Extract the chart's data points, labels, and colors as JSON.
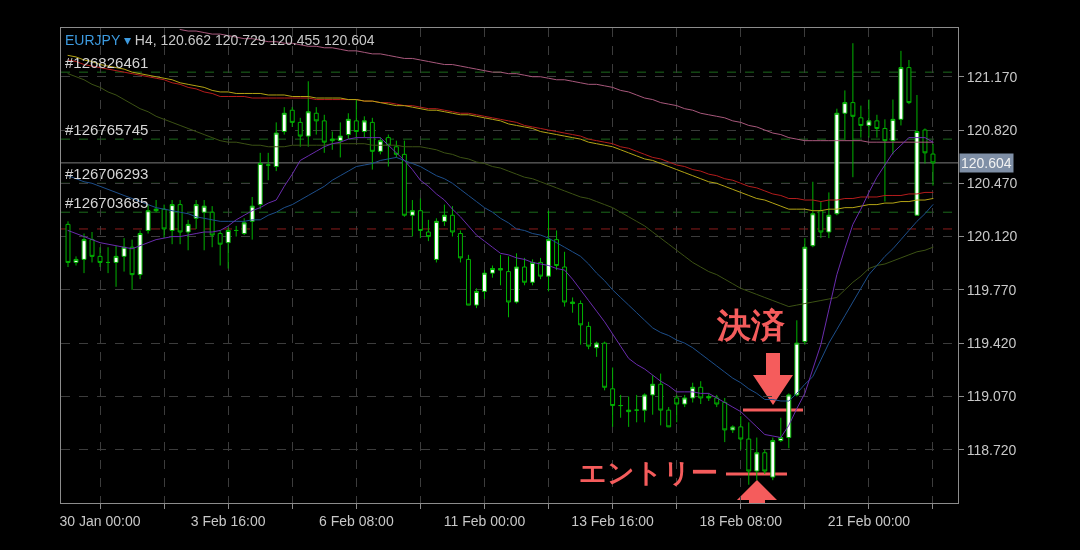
{
  "chart_data": {
    "type": "candlestick",
    "title": "EURJPY ▾",
    "subtitle": "H4, 120.662 120.729 120.455 120.604",
    "categories": [
      null,
      null,
      null,
      null,
      "30 Jan 00:00",
      null,
      null,
      null,
      null,
      null,
      null,
      null,
      null,
      null,
      null,
      null,
      null,
      null,
      null,
      null,
      "3 Feb 16:00",
      null,
      null,
      null,
      null,
      null,
      null,
      null,
      null,
      null,
      null,
      null,
      null,
      null,
      null,
      null,
      "6 Feb 08:00",
      null,
      null,
      null,
      null,
      null,
      null,
      null,
      null,
      null,
      null,
      null,
      null,
      null,
      null,
      null,
      "11 Feb 00:00",
      null,
      null,
      null,
      null,
      null,
      null,
      null,
      null,
      null,
      null,
      null,
      null,
      null,
      null,
      null,
      "13 Feb 16:00",
      null,
      null,
      null,
      null,
      null,
      null,
      null,
      null,
      null,
      null,
      null,
      null,
      null,
      null,
      null,
      "18 Feb 08:00",
      null,
      null,
      null,
      null,
      null,
      null,
      null,
      null,
      null,
      null,
      null,
      null,
      null,
      null,
      null,
      "21 Feb 00:00",
      null,
      null,
      null,
      null,
      null,
      null,
      null,
      null
    ],
    "ohlc": [
      [
        120.2,
        120.22,
        119.92,
        119.95
      ],
      [
        119.95,
        119.99,
        119.93,
        119.97
      ],
      [
        119.97,
        120.14,
        119.88,
        120.1
      ],
      [
        120.1,
        120.15,
        119.95,
        119.99
      ],
      [
        119.99,
        120.05,
        119.92,
        119.95
      ],
      [
        119.95,
        120.05,
        119.88,
        119.95
      ],
      [
        119.95,
        120.06,
        119.79,
        119.99
      ],
      [
        119.99,
        120.11,
        119.89,
        120.05
      ],
      [
        120.05,
        120.1,
        119.77,
        119.87
      ],
      [
        119.87,
        120.16,
        119.84,
        120.14
      ],
      [
        120.16,
        120.33,
        120.14,
        120.29
      ],
      [
        120.29,
        120.36,
        120.28,
        120.3
      ],
      [
        120.3,
        120.33,
        120.11,
        120.17
      ],
      [
        120.16,
        120.36,
        120.07,
        120.33
      ],
      [
        120.33,
        120.36,
        120.07,
        120.15
      ],
      [
        120.15,
        120.23,
        120.03,
        120.2
      ],
      [
        120.24,
        120.36,
        120.17,
        120.33
      ],
      [
        120.28,
        120.36,
        120.03,
        120.32
      ],
      [
        120.28,
        120.32,
        120.05,
        120.13
      ],
      [
        120.14,
        120.16,
        119.93,
        120.07
      ],
      [
        120.08,
        120.18,
        119.91,
        120.16
      ],
      [
        120.16,
        120.19,
        120.12,
        120.16
      ],
      [
        120.14,
        120.24,
        120.13,
        120.21
      ],
      [
        120.22,
        120.38,
        120.1,
        120.32
      ],
      [
        120.33,
        120.67,
        120.3,
        120.6
      ],
      [
        120.59,
        120.67,
        120.49,
        120.59
      ],
      [
        120.58,
        120.87,
        120.55,
        120.8
      ],
      [
        120.81,
        120.97,
        120.79,
        120.93
      ],
      [
        120.95,
        120.97,
        120.84,
        120.87
      ],
      [
        120.87,
        120.9,
        120.71,
        120.78
      ],
      [
        120.78,
        121.14,
        120.71,
        120.94
      ],
      [
        120.93,
        120.97,
        120.79,
        120.88
      ],
      [
        120.88,
        120.92,
        120.67,
        120.74
      ],
      [
        120.75,
        120.81,
        120.69,
        120.76
      ],
      [
        120.75,
        120.87,
        120.64,
        120.78
      ],
      [
        120.79,
        120.93,
        120.76,
        120.89
      ],
      [
        120.88,
        121.02,
        120.77,
        120.81
      ],
      [
        120.81,
        120.91,
        120.77,
        120.88
      ],
      [
        120.87,
        120.9,
        120.56,
        120.68
      ],
      [
        120.68,
        120.77,
        120.66,
        120.75
      ],
      [
        120.77,
        120.79,
        120.58,
        120.72
      ],
      [
        120.71,
        120.75,
        120.64,
        120.66
      ],
      [
        120.66,
        120.75,
        120.25,
        120.26
      ],
      [
        120.26,
        120.36,
        120.12,
        120.29
      ],
      [
        120.29,
        120.37,
        120.11,
        120.16
      ],
      [
        120.15,
        120.23,
        120.09,
        120.12
      ],
      [
        119.97,
        120.24,
        119.95,
        120.22
      ],
      [
        120.22,
        120.33,
        120.19,
        120.26
      ],
      [
        120.26,
        120.32,
        120.12,
        120.15
      ],
      [
        120.14,
        120.16,
        119.95,
        119.98
      ],
      [
        119.97,
        120.0,
        119.67,
        119.67
      ],
      [
        119.67,
        119.78,
        119.65,
        119.76
      ],
      [
        119.76,
        119.9,
        119.71,
        119.88
      ],
      [
        119.88,
        119.93,
        119.85,
        119.91
      ],
      [
        119.9,
        120.0,
        119.8,
        119.91
      ],
      [
        119.89,
        119.99,
        119.59,
        119.69
      ],
      [
        119.69,
        120.01,
        119.68,
        119.92
      ],
      [
        119.92,
        119.98,
        119.8,
        119.82
      ],
      [
        119.82,
        119.97,
        119.8,
        119.95
      ],
      [
        119.95,
        119.98,
        119.84,
        119.86
      ],
      [
        119.86,
        120.29,
        119.76,
        120.1
      ],
      [
        120.1,
        120.16,
        119.9,
        119.93
      ],
      [
        119.92,
        120.02,
        119.66,
        119.69
      ],
      [
        119.69,
        119.72,
        119.62,
        119.68
      ],
      [
        119.68,
        119.7,
        119.41,
        119.54
      ],
      [
        119.53,
        119.56,
        119.38,
        119.4
      ],
      [
        119.39,
        119.43,
        119.33,
        119.42
      ],
      [
        119.42,
        119.43,
        119.11,
        119.13
      ],
      [
        119.12,
        119.26,
        118.87,
        119.01
      ],
      [
        119.01,
        119.08,
        118.93,
        119.01
      ],
      [
        118.97,
        119.07,
        118.87,
        118.98
      ],
      [
        118.98,
        119.08,
        118.9,
        118.98
      ],
      [
        118.98,
        119.09,
        118.9,
        119.08
      ],
      [
        119.08,
        119.21,
        118.95,
        119.15
      ],
      [
        119.15,
        119.22,
        118.88,
        118.98
      ],
      [
        118.98,
        119.0,
        118.87,
        118.87
      ],
      [
        119.06,
        119.08,
        118.9,
        119.02
      ],
      [
        119.02,
        119.08,
        119.0,
        119.06
      ],
      [
        119.06,
        119.16,
        119.03,
        119.13
      ],
      [
        119.13,
        119.17,
        119.02,
        119.06
      ],
      [
        119.06,
        119.09,
        119.04,
        119.07
      ],
      [
        119.06,
        119.08,
        119.0,
        119.02
      ],
      [
        119.03,
        119.06,
        118.77,
        118.85
      ],
      [
        118.85,
        118.88,
        118.83,
        118.87
      ],
      [
        118.87,
        118.94,
        118.72,
        118.79
      ],
      [
        118.79,
        118.9,
        118.49,
        118.58
      ],
      [
        118.58,
        118.8,
        118.52,
        118.7
      ],
      [
        118.7,
        118.72,
        118.56,
        118.58
      ],
      [
        118.54,
        118.8,
        118.52,
        118.78
      ],
      [
        118.78,
        118.93,
        118.77,
        118.8
      ],
      [
        118.8,
        119.09,
        118.73,
        119.08
      ],
      [
        119.08,
        119.57,
        119.07,
        119.42
      ],
      [
        119.43,
        120.11,
        119.41,
        120.05
      ],
      [
        120.06,
        120.48,
        120.05,
        120.27
      ],
      [
        120.29,
        120.35,
        120.11,
        120.15
      ],
      [
        120.15,
        120.41,
        120.11,
        120.26
      ],
      [
        120.27,
        120.96,
        120.26,
        120.93
      ],
      [
        120.93,
        121.08,
        120.75,
        121.0
      ],
      [
        121.0,
        121.39,
        120.51,
        120.91
      ],
      [
        120.9,
        120.98,
        120.77,
        120.85
      ],
      [
        120.85,
        121.02,
        120.77,
        120.88
      ],
      [
        120.88,
        120.92,
        120.77,
        120.83
      ],
      [
        120.83,
        120.89,
        120.35,
        120.75
      ],
      [
        120.75,
        121.02,
        120.66,
        120.89
      ],
      [
        120.89,
        121.34,
        120.85,
        121.23
      ],
      [
        121.23,
        121.28,
        120.99,
        121.0
      ],
      [
        120.26,
        121.05,
        120.26,
        120.81
      ],
      [
        120.82,
        120.83,
        120.6,
        120.67
      ],
      [
        120.662,
        120.729,
        120.455,
        120.604
      ]
    ],
    "color": "#00b300",
    "colors": [
      "#000000",
      "#ffffff",
      "#ffffff",
      "#000000",
      "#000000",
      "#00b300",
      "#ffffff",
      "#ffffff",
      "#000000",
      "#ffffff",
      "#ffffff",
      "#00b300",
      "#000000",
      "#ffffff",
      "#000000",
      "#ffffff",
      "#ffffff",
      "#ffffff",
      "#000000",
      "#000000",
      "#ffffff",
      "#00b300",
      "#ffffff",
      "#ffffff",
      "#ffffff",
      "#00b300",
      "#ffffff",
      "#ffffff",
      "#000000",
      "#000000",
      "#ffffff",
      "#000000",
      "#000000",
      "#00b300",
      "#ffffff",
      "#ffffff",
      "#000000",
      "#ffffff",
      "#000000",
      "#ffffff",
      "#000000",
      "#000000",
      "#000000",
      "#ffffff",
      "#000000",
      "#000000",
      "#ffffff",
      "#ffffff",
      "#000000",
      "#000000",
      "#000000",
      "#ffffff",
      "#ffffff",
      "#ffffff",
      "#00b300",
      "#000000",
      "#ffffff",
      "#000000",
      "#ffffff",
      "#000000",
      "#ffffff",
      "#000000",
      "#000000",
      "#00b300",
      "#000000",
      "#000000",
      "#ffffff",
      "#000000",
      "#000000",
      "#00b300",
      "#00b300",
      "#00b300",
      "#ffffff",
      "#ffffff",
      "#000000",
      "#000000",
      "#000000",
      "#ffffff",
      "#ffffff",
      "#000000",
      "#00b300",
      "#000000",
      "#000000",
      "#ffffff",
      "#000000",
      "#000000",
      "#ffffff",
      "#000000",
      "#ffffff",
      "#ffffff",
      "#ffffff",
      "#ffffff",
      "#ffffff",
      "#ffffff",
      "#000000",
      "#ffffff",
      "#ffffff",
      "#ffffff",
      "#000000",
      "#000000",
      "#ffffff",
      "#000000",
      "#000000",
      "#ffffff",
      "#ffffff",
      "#000000",
      "#ffffff",
      "#000000",
      "#000000"
    ],
    "series": [
      {
        "type": "line",
        "color": "#a8587c",
        "values": [
          null,
          null,
          null,
          null,
          null,
          null,
          null,
          null,
          null,
          null,
          null,
          null,
          null,
          null,
          121.48,
          121.47,
          121.47,
          121.46,
          121.45,
          121.45,
          121.44,
          121.43,
          121.42,
          121.42,
          121.41,
          121.4,
          121.4,
          121.39,
          121.39,
          121.38,
          121.37,
          121.37,
          121.36,
          121.36,
          121.35,
          121.34,
          121.34,
          121.33,
          121.32,
          121.32,
          121.31,
          121.3,
          121.29,
          121.29,
          121.28,
          121.27,
          121.26,
          121.25,
          121.25,
          121.24,
          121.23,
          121.22,
          121.21,
          121.2,
          121.2,
          121.19,
          121.19,
          121.18,
          121.17,
          121.17,
          121.16,
          121.15,
          121.15,
          121.14,
          121.13,
          121.12,
          121.12,
          121.11,
          121.1,
          121.08,
          121.07,
          121.05,
          121.03,
          121.02,
          121.0,
          120.99,
          120.98,
          120.96,
          120.95,
          120.93,
          120.92,
          120.91,
          120.9,
          120.88,
          120.87,
          120.85,
          120.84,
          120.82,
          120.8,
          120.79,
          120.77,
          120.76,
          120.75,
          120.75,
          120.75,
          120.75,
          120.75,
          120.75,
          120.75,
          120.75,
          120.74,
          120.74,
          120.74,
          120.74,
          120.74,
          120.74,
          120.74,
          120.74,
          120.74
        ]
      },
      {
        "type": "line",
        "color": "#b41c1c",
        "values": [
          121.28,
          121.27,
          121.25,
          121.24,
          121.23,
          121.22,
          121.21,
          121.2,
          121.19,
          121.18,
          121.17,
          121.16,
          121.15,
          121.13,
          121.12,
          121.1,
          121.09,
          121.07,
          121.06,
          121.04,
          121.04,
          121.04,
          121.04,
          121.03,
          121.03,
          121.03,
          121.03,
          121.03,
          121.03,
          121.03,
          121.03,
          121.02,
          121.02,
          121.02,
          121.02,
          121.02,
          121.02,
          121.01,
          121.01,
          121.0,
          121.0,
          120.99,
          120.98,
          120.98,
          120.97,
          120.96,
          120.96,
          120.95,
          120.94,
          120.93,
          120.93,
          120.92,
          120.91,
          120.9,
          120.89,
          120.88,
          120.87,
          120.85,
          120.84,
          120.83,
          120.82,
          120.81,
          120.8,
          120.79,
          120.78,
          120.76,
          120.75,
          120.74,
          120.73,
          120.71,
          120.7,
          120.68,
          120.66,
          120.64,
          120.63,
          120.61,
          120.59,
          120.58,
          120.56,
          120.55,
          120.53,
          120.52,
          120.5,
          120.49,
          120.47,
          120.45,
          120.44,
          120.42,
          120.4,
          120.39,
          120.37,
          120.37,
          120.36,
          120.36,
          120.35,
          120.36,
          120.36,
          120.37,
          120.37,
          120.38,
          120.38,
          120.38,
          120.39,
          120.39,
          120.39,
          120.4,
          120.4,
          120.41,
          120.41
        ]
      },
      {
        "type": "line",
        "color": "#b4a414",
        "values": [
          121.31,
          121.3,
          121.28,
          121.27,
          121.25,
          121.24,
          121.23,
          121.22,
          121.2,
          121.19,
          121.18,
          121.17,
          121.16,
          121.15,
          121.13,
          121.12,
          121.11,
          121.1,
          121.08,
          121.07,
          121.07,
          121.06,
          121.06,
          121.06,
          121.06,
          121.05,
          121.05,
          121.05,
          121.04,
          121.04,
          121.04,
          121.03,
          121.03,
          121.03,
          121.03,
          121.02,
          121.02,
          121.01,
          121.01,
          121.0,
          120.99,
          120.98,
          120.98,
          120.97,
          120.96,
          120.95,
          120.95,
          120.94,
          120.93,
          120.92,
          120.92,
          120.91,
          120.9,
          120.89,
          120.88,
          120.86,
          120.85,
          120.84,
          120.83,
          120.81,
          120.8,
          120.79,
          120.78,
          120.77,
          120.76,
          120.74,
          120.73,
          120.72,
          120.71,
          120.69,
          120.67,
          120.65,
          120.63,
          120.62,
          120.6,
          120.58,
          120.56,
          120.54,
          120.52,
          120.5,
          120.48,
          120.47,
          120.45,
          120.43,
          120.41,
          120.39,
          120.37,
          120.36,
          120.34,
          120.32,
          120.3,
          120.3,
          120.3,
          120.29,
          120.29,
          120.3,
          120.3,
          120.31,
          120.31,
          120.32,
          120.33,
          120.33,
          120.34,
          120.34,
          120.35,
          120.35,
          120.36,
          120.36,
          120.37
        ]
      },
      {
        "type": "line",
        "color": "#3c5214",
        "values": [
          121.19,
          121.17,
          121.15,
          121.12,
          121.1,
          121.07,
          121.05,
          121.02,
          120.99,
          120.96,
          120.94,
          120.91,
          120.89,
          120.87,
          120.85,
          120.83,
          120.81,
          120.79,
          120.77,
          120.75,
          120.74,
          120.74,
          120.73,
          120.72,
          120.72,
          120.71,
          120.71,
          120.71,
          120.72,
          120.72,
          120.72,
          120.72,
          120.72,
          120.73,
          120.73,
          120.73,
          120.73,
          120.73,
          120.72,
          120.72,
          120.72,
          120.72,
          120.71,
          120.71,
          120.71,
          120.7,
          120.69,
          120.67,
          120.66,
          120.64,
          120.63,
          120.61,
          120.6,
          120.58,
          120.57,
          120.55,
          120.53,
          120.51,
          120.5,
          120.48,
          120.46,
          120.44,
          120.42,
          120.4,
          120.38,
          120.37,
          120.35,
          120.33,
          120.31,
          120.28,
          120.25,
          120.22,
          120.19,
          120.15,
          120.11,
          120.07,
          120.03,
          119.99,
          119.95,
          119.92,
          119.89,
          119.87,
          119.84,
          119.81,
          119.78,
          119.76,
          119.74,
          119.72,
          119.7,
          119.68,
          119.66,
          119.67,
          119.68,
          119.69,
          119.7,
          119.71,
          119.72,
          119.77,
          119.82,
          119.86,
          119.91,
          119.93,
          119.94,
          119.96,
          119.98,
          120.0,
          120.02,
          120.03,
          120.05
        ]
      },
      {
        "type": "line",
        "color": "#1d4f8c",
        "values": [
          120.52,
          120.5,
          120.48,
          120.47,
          120.45,
          120.43,
          120.41,
          120.39,
          120.37,
          120.35,
          120.33,
          120.31,
          120.3,
          120.29,
          120.28,
          120.27,
          120.25,
          120.24,
          120.23,
          120.22,
          120.22,
          120.22,
          120.22,
          120.23,
          120.23,
          120.26,
          120.28,
          120.31,
          120.33,
          120.36,
          120.39,
          120.42,
          120.45,
          120.49,
          120.52,
          120.55,
          120.58,
          120.59,
          120.6,
          120.62,
          120.63,
          120.64,
          120.62,
          120.6,
          120.58,
          120.55,
          120.52,
          120.5,
          120.47,
          120.43,
          120.39,
          120.35,
          120.31,
          120.28,
          120.24,
          120.21,
          120.17,
          120.16,
          120.14,
          120.13,
          120.11,
          120.08,
          120.05,
          120.02,
          119.99,
          119.94,
          119.88,
          119.83,
          119.77,
          119.72,
          119.67,
          119.62,
          119.57,
          119.52,
          119.49,
          119.47,
          119.44,
          119.42,
          119.39,
          119.35,
          119.31,
          119.27,
          119.23,
          119.19,
          119.16,
          119.12,
          119.09,
          119.05,
          119.05,
          119.04,
          119.04,
          119.09,
          119.15,
          119.2,
          119.31,
          119.42,
          119.51,
          119.6,
          119.69,
          119.78,
          119.87,
          119.93,
          119.99,
          120.04,
          120.1,
          120.16,
          120.22,
          120.27,
          120.33
        ]
      },
      {
        "type": "line",
        "color": "#6a2cae",
        "values": [
          120.16,
          120.14,
          120.12,
          120.1,
          120.08,
          120.07,
          120.06,
          120.05,
          120.04,
          120.06,
          120.08,
          120.1,
          120.11,
          120.12,
          120.12,
          120.13,
          120.14,
          120.15,
          120.15,
          120.16,
          120.19,
          120.23,
          120.26,
          120.29,
          120.31,
          120.34,
          120.36,
          120.45,
          120.53,
          120.62,
          120.65,
          120.68,
          120.71,
          120.73,
          120.74,
          120.76,
          120.77,
          120.77,
          120.77,
          120.77,
          120.72,
          120.67,
          120.62,
          120.56,
          120.49,
          120.45,
          120.4,
          120.36,
          120.3,
          120.25,
          120.19,
          120.13,
          120.09,
          120.05,
          120.01,
          120.0,
          119.98,
          119.97,
          119.95,
          119.94,
          119.93,
          119.91,
          119.9,
          119.84,
          119.77,
          119.7,
          119.63,
          119.56,
          119.48,
          119.4,
          119.32,
          119.28,
          119.25,
          119.21,
          119.17,
          119.14,
          119.1,
          119.1,
          119.1,
          119.09,
          119.09,
          119.06,
          119.03,
          119.0,
          118.97,
          118.92,
          118.87,
          118.82,
          118.81,
          118.8,
          118.88,
          118.99,
          119.09,
          119.25,
          119.41,
          119.64,
          119.87,
          120.04,
          120.2,
          120.3,
          120.41,
          120.51,
          120.59,
          120.67,
          120.72,
          120.77,
          120.77,
          120.77,
          120.74
        ]
      }
    ],
    "ylim": [
      118.37,
      121.49
    ],
    "yticks": [
      {
        "value": 118.72,
        "label": "118.720"
      },
      {
        "value": 119.07,
        "label": "119.070"
      },
      {
        "value": 119.42,
        "label": "119.420"
      },
      {
        "value": 119.77,
        "label": "119.770"
      },
      {
        "value": 120.12,
        "label": "120.120"
      },
      {
        "value": 120.47,
        "label": "120.470"
      },
      {
        "value": 120.82,
        "label": "120.820"
      },
      {
        "value": 121.17,
        "label": "121.170"
      }
    ],
    "grid": true,
    "ref_lines": [
      {
        "axis": "y",
        "value": 121.2,
        "color": "#1c6a1c",
        "line_style": "dashed"
      },
      {
        "axis": "y",
        "value": 120.76,
        "color": "#1c6a1c",
        "line_style": "dashed"
      },
      {
        "axis": "y",
        "value": 120.47,
        "color": "#1c6a1c",
        "line_style": "dashed"
      },
      {
        "axis": "y",
        "value": 120.28,
        "color": "#1c6a1c",
        "line_style": "dashed"
      },
      {
        "axis": "y",
        "value": 120.17,
        "color": "#8a1c1c",
        "line_style": "dashed"
      },
      {
        "axis": "y",
        "value": 120.604,
        "label": "120.604",
        "color": "#7c7c7c",
        "line_style": "solid"
      }
    ],
    "annotations": [
      {
        "text": "#126826461",
        "y": 121.2
      },
      {
        "text": "#126765745",
        "y": 120.76
      },
      {
        "text": "#126706293",
        "y": 120.47
      },
      {
        "text": "#126703685",
        "y": 120.28
      },
      "決済",
      "エントリー"
    ]
  }
}
